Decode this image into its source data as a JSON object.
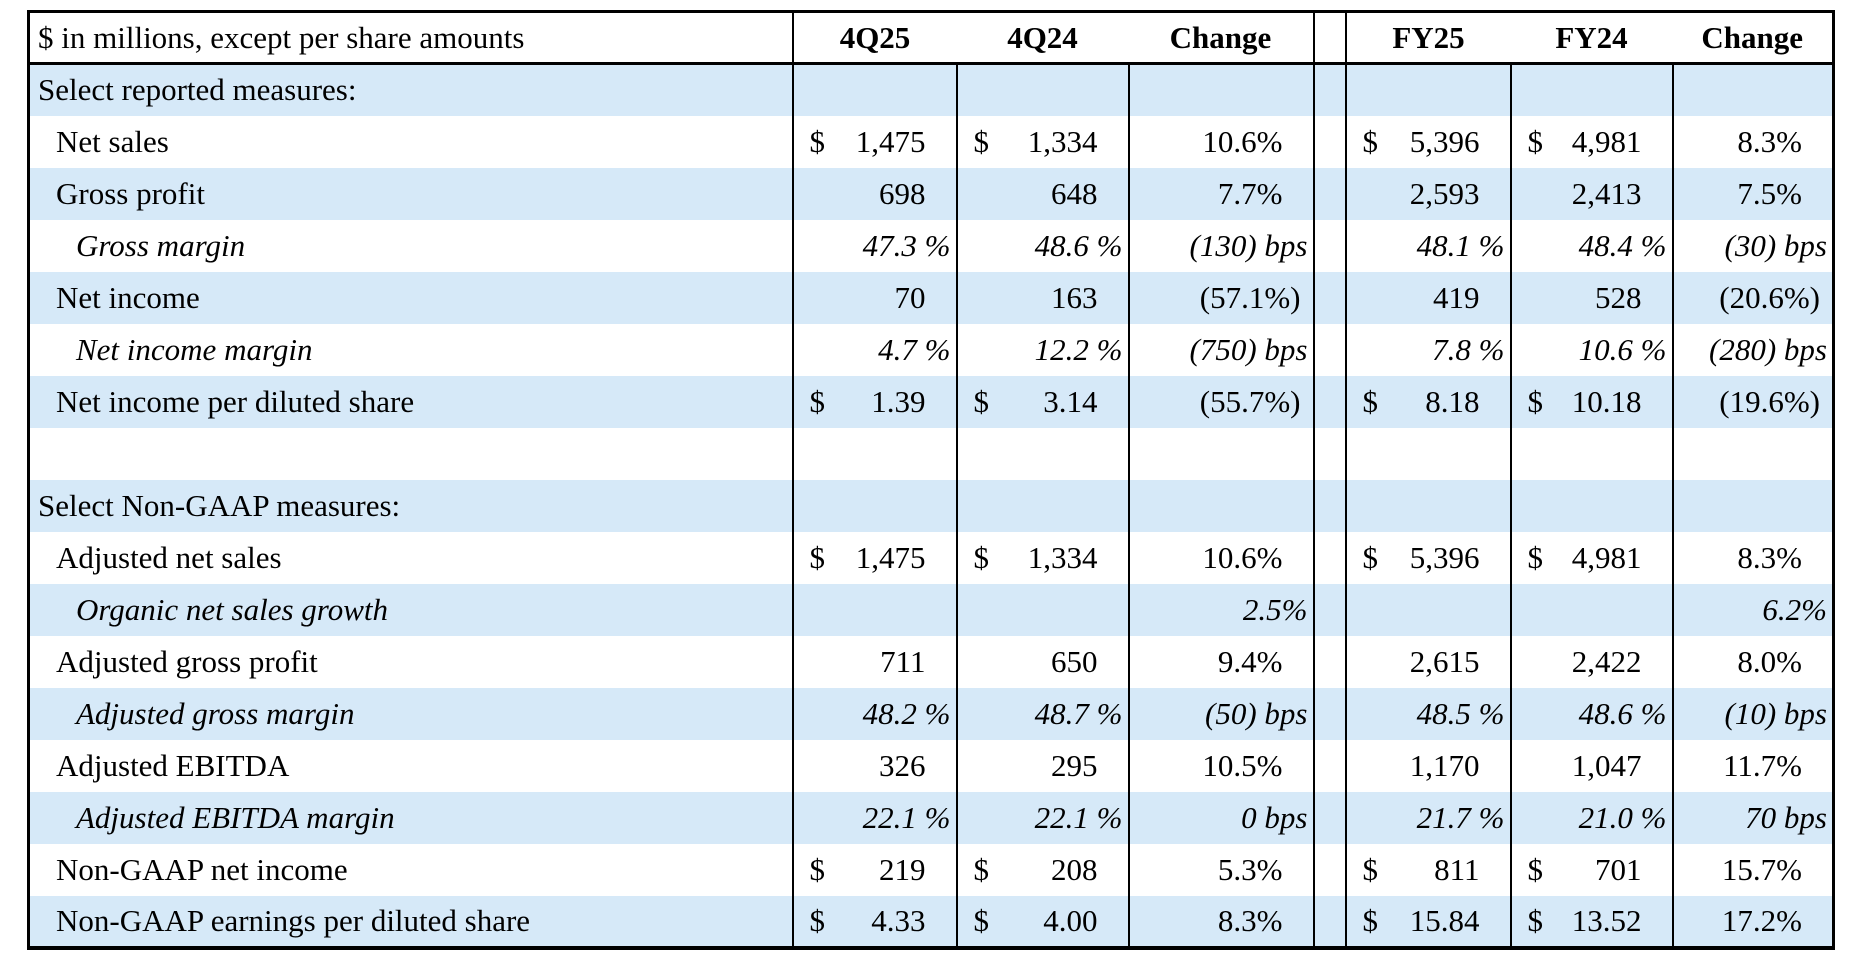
{
  "table": {
    "unit_note": "$ in millions, except per share amounts",
    "columns": [
      "4Q25",
      "4Q24",
      "Change",
      "FY25",
      "FY24",
      "Change"
    ],
    "colors": {
      "stripe_blue": "#D6E9F8",
      "border": "#000000",
      "text": "#000000",
      "background": "#FFFFFF"
    },
    "rows": [
      {
        "label": "Select reported measures:",
        "indent": 0,
        "italic": false,
        "section": true,
        "blank": false,
        "cells": [
          "",
          "",
          "",
          "",
          "",
          ""
        ]
      },
      {
        "label": "Net sales",
        "indent": 1,
        "italic": false,
        "section": false,
        "blank": false,
        "cells": [
          {
            "d": "$",
            "v": "1,475"
          },
          {
            "d": "$",
            "v": "1,334"
          },
          "10.6%",
          {
            "d": "$",
            "v": "5,396"
          },
          {
            "d": "$",
            "v": "4,981"
          },
          "8.3%"
        ]
      },
      {
        "label": "Gross profit",
        "indent": 1,
        "italic": false,
        "section": false,
        "blank": false,
        "cells": [
          "698",
          "648",
          "7.7%",
          "2,593",
          "2,413",
          "7.5%"
        ]
      },
      {
        "label": "Gross margin",
        "indent": 2,
        "italic": true,
        "section": false,
        "blank": false,
        "cells": [
          "47.3 %",
          "48.6 %",
          "(130) bps",
          "48.1 %",
          "48.4 %",
          "(30) bps"
        ]
      },
      {
        "label": "Net income",
        "indent": 1,
        "italic": false,
        "section": false,
        "blank": false,
        "cells": [
          "70",
          "163",
          "(57.1%)",
          "419",
          "528",
          "(20.6%)"
        ]
      },
      {
        "label": "Net income margin",
        "indent": 2,
        "italic": true,
        "section": false,
        "blank": false,
        "cells": [
          "4.7 %",
          "12.2 %",
          "(750) bps",
          "7.8 %",
          "10.6 %",
          "(280) bps"
        ]
      },
      {
        "label": "Net income per diluted share",
        "indent": 1,
        "italic": false,
        "section": false,
        "blank": false,
        "cells": [
          {
            "d": "$",
            "v": "1.39"
          },
          {
            "d": "$",
            "v": "3.14"
          },
          "(55.7%)",
          {
            "d": "$",
            "v": "8.18"
          },
          {
            "d": "$",
            "v": "10.18"
          },
          "(19.6%)"
        ]
      },
      {
        "label": "",
        "indent": 0,
        "italic": false,
        "section": false,
        "blank": true,
        "cells": [
          "",
          "",
          "",
          "",
          "",
          ""
        ]
      },
      {
        "label": "Select Non-GAAP measures:",
        "indent": 0,
        "italic": false,
        "section": true,
        "blank": false,
        "cells": [
          "",
          "",
          "",
          "",
          "",
          ""
        ]
      },
      {
        "label": "Adjusted net sales",
        "indent": 1,
        "italic": false,
        "section": false,
        "blank": false,
        "cells": [
          {
            "d": "$",
            "v": "1,475"
          },
          {
            "d": "$",
            "v": "1,334"
          },
          "10.6%",
          {
            "d": "$",
            "v": "5,396"
          },
          {
            "d": "$",
            "v": "4,981"
          },
          "8.3%"
        ]
      },
      {
        "label": "Organic net sales growth",
        "indent": 2,
        "italic": true,
        "section": false,
        "blank": false,
        "cells": [
          "",
          "",
          "2.5%",
          "",
          "",
          "6.2%"
        ]
      },
      {
        "label": "Adjusted gross profit",
        "indent": 1,
        "italic": false,
        "section": false,
        "blank": false,
        "cells": [
          "711",
          "650",
          "9.4%",
          "2,615",
          "2,422",
          "8.0%"
        ]
      },
      {
        "label": "Adjusted gross margin",
        "indent": 2,
        "italic": true,
        "section": false,
        "blank": false,
        "cells": [
          "48.2 %",
          "48.7 %",
          "(50) bps",
          "48.5 %",
          "48.6 %",
          "(10) bps"
        ]
      },
      {
        "label": "Adjusted EBITDA",
        "indent": 1,
        "italic": false,
        "section": false,
        "blank": false,
        "cells": [
          "326",
          "295",
          "10.5%",
          "1,170",
          "1,047",
          "11.7%"
        ]
      },
      {
        "label": "Adjusted EBITDA margin",
        "indent": 2,
        "italic": true,
        "section": false,
        "blank": false,
        "cells": [
          "22.1 %",
          "22.1 %",
          "0 bps",
          "21.7 %",
          "21.0 %",
          "70 bps"
        ]
      },
      {
        "label": "Non-GAAP net income",
        "indent": 1,
        "italic": false,
        "section": false,
        "blank": false,
        "cells": [
          {
            "d": "$",
            "v": "219"
          },
          {
            "d": "$",
            "v": "208"
          },
          "5.3%",
          {
            "d": "$",
            "v": "811"
          },
          {
            "d": "$",
            "v": "701"
          },
          "15.7%"
        ]
      },
      {
        "label": "Non-GAAP earnings per diluted share",
        "indent": 1,
        "italic": false,
        "section": false,
        "blank": false,
        "cells": [
          {
            "d": "$",
            "v": "4.33"
          },
          {
            "d": "$",
            "v": "4.00"
          },
          "8.3%",
          {
            "d": "$",
            "v": "15.84"
          },
          {
            "d": "$",
            "v": "13.52"
          },
          "17.2%"
        ]
      }
    ]
  }
}
